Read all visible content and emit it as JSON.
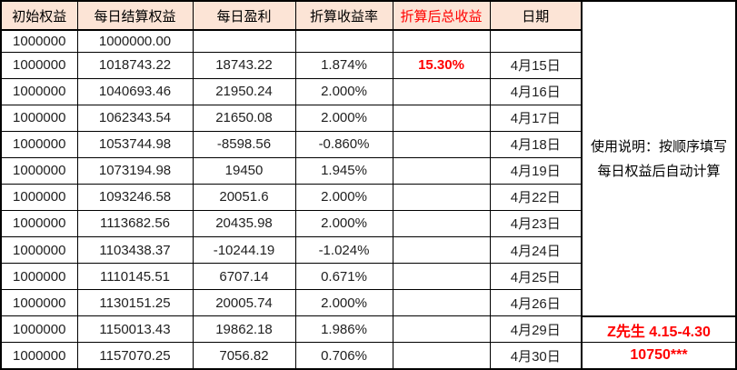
{
  "colors": {
    "header-bg": "#fce4d6",
    "accent-red": "#ff0000",
    "grid-border": "#000000",
    "text": "#1f1f1f"
  },
  "table": {
    "headers": [
      "初始权益",
      "每日结算权益",
      "每日盈利",
      "折算收益率",
      "折算后总收益",
      "日期"
    ],
    "rows": [
      [
        "1000000",
        "1000000.00",
        "",
        "",
        "",
        ""
      ],
      [
        "1000000",
        "1018743.22",
        "18743.22",
        "1.874%",
        "15.30%",
        "4月15日"
      ],
      [
        "1000000",
        "1040693.46",
        "21950.24",
        "2.000%",
        "",
        "4月16日"
      ],
      [
        "1000000",
        "1062343.54",
        "21650.08",
        "2.000%",
        "",
        "4月17日"
      ],
      [
        "1000000",
        "1053744.98",
        "-8598.56",
        "-0.860%",
        "",
        "4月18日"
      ],
      [
        "1000000",
        "1073194.98",
        "19450",
        "1.945%",
        "",
        "4月19日"
      ],
      [
        "1000000",
        "1093246.58",
        "20051.6",
        "2.000%",
        "",
        "4月22日"
      ],
      [
        "1000000",
        "1113682.56",
        "20435.98",
        "2.000%",
        "",
        "4月23日"
      ],
      [
        "1000000",
        "1103438.37",
        "-10244.19",
        "-1.024%",
        "",
        "4月24日"
      ],
      [
        "1000000",
        "1110145.51",
        "6707.14",
        "0.671%",
        "",
        "4月25日"
      ],
      [
        "1000000",
        "1130151.25",
        "20005.74",
        "2.000%",
        "",
        "4月26日"
      ],
      [
        "1000000",
        "1150013.43",
        "19862.18",
        "1.986%",
        "",
        "4月29日"
      ],
      [
        "1000000",
        "1157070.25",
        "7056.82",
        "0.706%",
        "",
        "4月30日"
      ]
    ]
  },
  "side_panel": {
    "note": "使用说明：按顺序填写每日权益后自动计算",
    "signature": "Z先生  4.15-4.30",
    "account": "10750***"
  }
}
